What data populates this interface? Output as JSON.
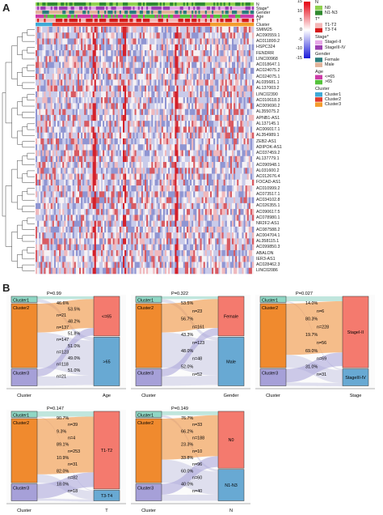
{
  "panel_a": {
    "letter": "A",
    "tracks": [
      "N",
      "Stage*",
      "Gender",
      "Age",
      "T*",
      "Cluster"
    ],
    "genes": [
      "SMIM25",
      "AC090559.1",
      "AC011899.2",
      "HSPC324",
      "FENDRR",
      "LINC00968",
      "AC018647.1",
      "AC024075.2",
      "AC024075.1",
      "AL035681.1",
      "AL137003.2",
      "LINC02390",
      "AC010618.3",
      "AC009690.2",
      "AL355075.2",
      "APNB1-AS1",
      "AL137145.1",
      "AC006017.1",
      "AL354989.1",
      "ZEB2-AS1",
      "ADIPOK-AS1",
      "AC037459.2",
      "AL137779.1",
      "AC090948.1",
      "AL031600.2",
      "AC012676.4",
      "FOCAD-AS1",
      "AC010999.2",
      "AC073517.1",
      "AC034102.8",
      "AC026355.1",
      "AC090617.5",
      "AC078980.1",
      "NR2F2-AS1",
      "AC087588.2",
      "AC004704.1",
      "AL358115.1",
      "AC099850.3",
      "ABALON",
      "IER3-AS1",
      "AC028462.3",
      "LINC02086"
    ],
    "legend": {
      "scale_ticks": [
        "15",
        "10",
        "5",
        "0",
        "-5",
        "-10",
        "-15"
      ],
      "groups": [
        {
          "title": "N",
          "items": [
            {
              "label": "N0",
              "color": "#8fd14f"
            },
            {
              "label": "N1-N3",
              "color": "#2f8a2f"
            }
          ]
        },
        {
          "title": "T*",
          "items": [
            {
              "label": "T1-T2",
              "color": "#f4b8b8"
            },
            {
              "label": "T3-T4",
              "color": "#d61a1a"
            }
          ]
        },
        {
          "title": "Stage*",
          "items": [
            {
              "label": "StageI-II",
              "color": "#e7a8e8"
            },
            {
              "label": "StageIII-IV",
              "color": "#9b3fb2"
            }
          ]
        },
        {
          "title": "Gender",
          "items": [
            {
              "label": "Female",
              "color": "#2a7d7d"
            },
            {
              "label": "Male",
              "color": "#e2b39a"
            }
          ]
        },
        {
          "title": "Age",
          "items": [
            {
              "label": "<=65",
              "color": "#cc3ba8"
            },
            {
              "label": ">65",
              "color": "#55c23c"
            }
          ]
        },
        {
          "title": "Cluster",
          "items": [
            {
              "label": "Cluster1",
              "color": "#3fa9d6"
            },
            {
              "label": "Cluster2",
              "color": "#e23a2c"
            },
            {
              "label": "Cluster3",
              "color": "#f39c2c"
            }
          ]
        }
      ]
    }
  },
  "panel_b": {
    "letter": "B",
    "cluster_colors": {
      "Cluster1": "#8fd6c4",
      "Cluster2": "#f08a2e",
      "Cluster3": "#a6a0d8"
    },
    "charts": [
      {
        "pvalue": "P=0.99",
        "x_left": "Cluster",
        "x_right": "Age",
        "left": [
          {
            "label": "Cluster1",
            "share": 0.08
          },
          {
            "label": "Cluster2",
            "share": 0.72
          },
          {
            "label": "Cluster3",
            "share": 0.2
          }
        ],
        "right": [
          {
            "label": "<=65",
            "share": 0.45,
            "color": "#f47a6e"
          },
          {
            "label": ">65",
            "share": 0.55,
            "color": "#68a9d3"
          }
        ],
        "flow_labels": [
          "46.6%",
          "53.5%",
          "n=21",
          "48.2%",
          "n=137",
          "51.8%",
          "n=147",
          "51.0%",
          "n=123",
          "49.0%",
          "n=118",
          "51.0%",
          "n=21"
        ]
      },
      {
        "pvalue": "P=0.322",
        "x_left": "Cluster",
        "x_right": "Gender",
        "left": [
          {
            "label": "Cluster1",
            "share": 0.08
          },
          {
            "label": "Cluster2",
            "share": 0.72
          },
          {
            "label": "Cluster3",
            "share": 0.2
          }
        ],
        "right": [
          {
            "label": "Female",
            "share": 0.45,
            "color": "#f47a6e"
          },
          {
            "label": "Male",
            "share": 0.55,
            "color": "#68a9d3"
          }
        ],
        "flow_labels": [
          "53.5%",
          "n=23",
          "56.7%",
          "n=161",
          "43.3%",
          "n=123",
          "48.0%",
          "n=48",
          "52.0%",
          "n=52"
        ]
      },
      {
        "pvalue": "P=0.027",
        "x_left": "Cluster",
        "x_right": "Stage",
        "left": [
          {
            "label": "Cluster1",
            "share": 0.08
          },
          {
            "label": "Cluster2",
            "share": 0.72
          },
          {
            "label": "Cluster3",
            "share": 0.2
          }
        ],
        "right": [
          {
            "label": "StageI-II",
            "share": 0.8,
            "color": "#f47a6e"
          },
          {
            "label": "StageIII-IV",
            "share": 0.2,
            "color": "#68a9d3"
          }
        ],
        "flow_labels": [
          "14.0%",
          "n=6",
          "80.3%",
          "n=228",
          "19.7%",
          "n=56",
          "69.0%",
          "n=69",
          "31.0%",
          "n=31"
        ]
      },
      {
        "pvalue": "P=0.147",
        "x_left": "Cluster",
        "x_right": "T",
        "left": [
          {
            "label": "Cluster1",
            "share": 0.08
          },
          {
            "label": "Cluster2",
            "share": 0.72
          },
          {
            "label": "Cluster3",
            "share": 0.2
          }
        ],
        "right": [
          {
            "label": "T1-T2",
            "share": 0.87,
            "color": "#f47a6e"
          },
          {
            "label": "T3-T4",
            "share": 0.13,
            "color": "#68a9d3"
          }
        ],
        "flow_labels": [
          "90.7%",
          "n=39",
          "9.3%",
          "n=4",
          "89.1%",
          "n=253",
          "10.9%",
          "n=31",
          "82.0%",
          "n=82",
          "18.0%",
          "n=18"
        ]
      },
      {
        "pvalue": "P=0.149",
        "x_left": "Cluster",
        "x_right": "N",
        "left": [
          {
            "label": "Cluster1",
            "share": 0.08
          },
          {
            "label": "Cluster2",
            "share": 0.72
          },
          {
            "label": "Cluster3",
            "share": 0.2
          }
        ],
        "right": [
          {
            "label": "N0",
            "share": 0.64,
            "color": "#f47a6e"
          },
          {
            "label": "N1-N3",
            "share": 0.36,
            "color": "#68a9d3"
          }
        ],
        "flow_labels": [
          "76.7%",
          "n=33",
          "66.2%",
          "n=188",
          "23.3%",
          "n=10",
          "33.8%",
          "n=96",
          "60.0%",
          "n=60",
          "40.0%",
          "n=40"
        ]
      }
    ]
  }
}
